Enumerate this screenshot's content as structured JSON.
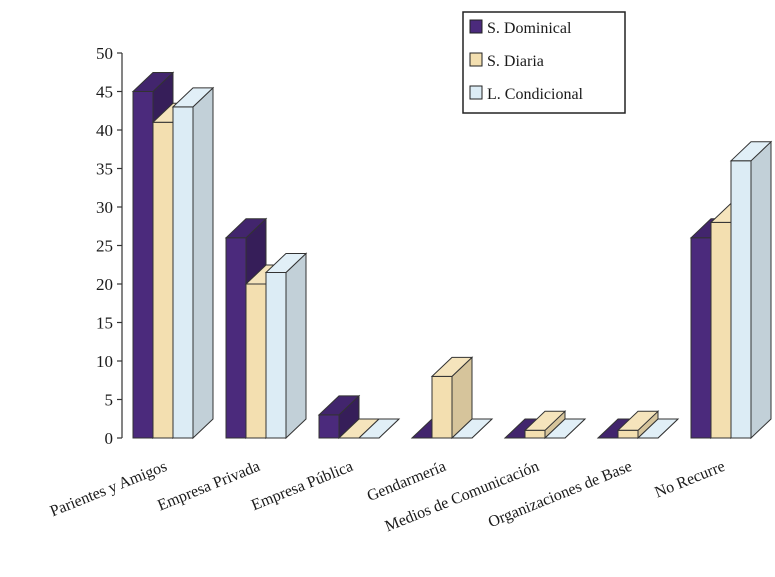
{
  "chart_data": {
    "type": "bar",
    "projection": "3d",
    "title": "",
    "xlabel": "",
    "ylabel": "",
    "ylim": [
      0,
      50
    ],
    "yticks": [
      0,
      5,
      10,
      15,
      20,
      25,
      30,
      35,
      40,
      45,
      50
    ],
    "grid": false,
    "legend_position": "top-right",
    "categories": [
      "Parientes y Amigos",
      "Empresa Privada",
      "Empresa Pública",
      "Gendarmería",
      "Medios de Comunicación",
      "Organizaciones de Base",
      "No Recurre"
    ],
    "series": [
      {
        "name": "S. Dominical",
        "color": "#4b2a7c",
        "values": [
          45,
          26,
          3,
          0,
          0,
          0,
          26
        ]
      },
      {
        "name": "S. Diaria",
        "color": "#f3dfb0",
        "values": [
          41,
          20,
          0,
          8,
          1,
          1,
          28
        ]
      },
      {
        "name": "L. Condicional",
        "color": "#dcecf5",
        "values": [
          43,
          21.5,
          0,
          0,
          0,
          0,
          36
        ]
      }
    ]
  }
}
